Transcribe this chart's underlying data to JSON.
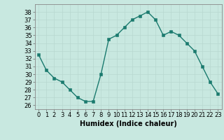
{
  "x": [
    0,
    1,
    2,
    3,
    4,
    5,
    6,
    7,
    8,
    9,
    10,
    11,
    12,
    13,
    14,
    15,
    16,
    17,
    18,
    19,
    20,
    21,
    22,
    23
  ],
  "y": [
    32.5,
    30.5,
    29.5,
    29,
    28,
    27,
    26.5,
    26.5,
    30,
    34.5,
    35,
    36,
    37,
    37.5,
    38,
    37,
    35,
    35.5,
    35,
    34,
    33,
    31,
    29,
    27.5
  ],
  "line_color": "#1a7a6e",
  "marker_color": "#1a7a6e",
  "bg_color": "#c8e8e0",
  "grid_color": "#b8d8d0",
  "xlabel": "Humidex (Indice chaleur)",
  "ylim": [
    25.5,
    39
  ],
  "xlim": [
    -0.5,
    23.5
  ],
  "yticks": [
    26,
    27,
    28,
    29,
    30,
    31,
    32,
    33,
    34,
    35,
    36,
    37,
    38
  ],
  "xticks": [
    0,
    1,
    2,
    3,
    4,
    5,
    6,
    7,
    8,
    9,
    10,
    11,
    12,
    13,
    14,
    15,
    16,
    17,
    18,
    19,
    20,
    21,
    22,
    23
  ],
  "xlabel_fontsize": 7.0,
  "tick_fontsize": 6.0,
  "line_width": 1.0,
  "marker_size": 2.5
}
